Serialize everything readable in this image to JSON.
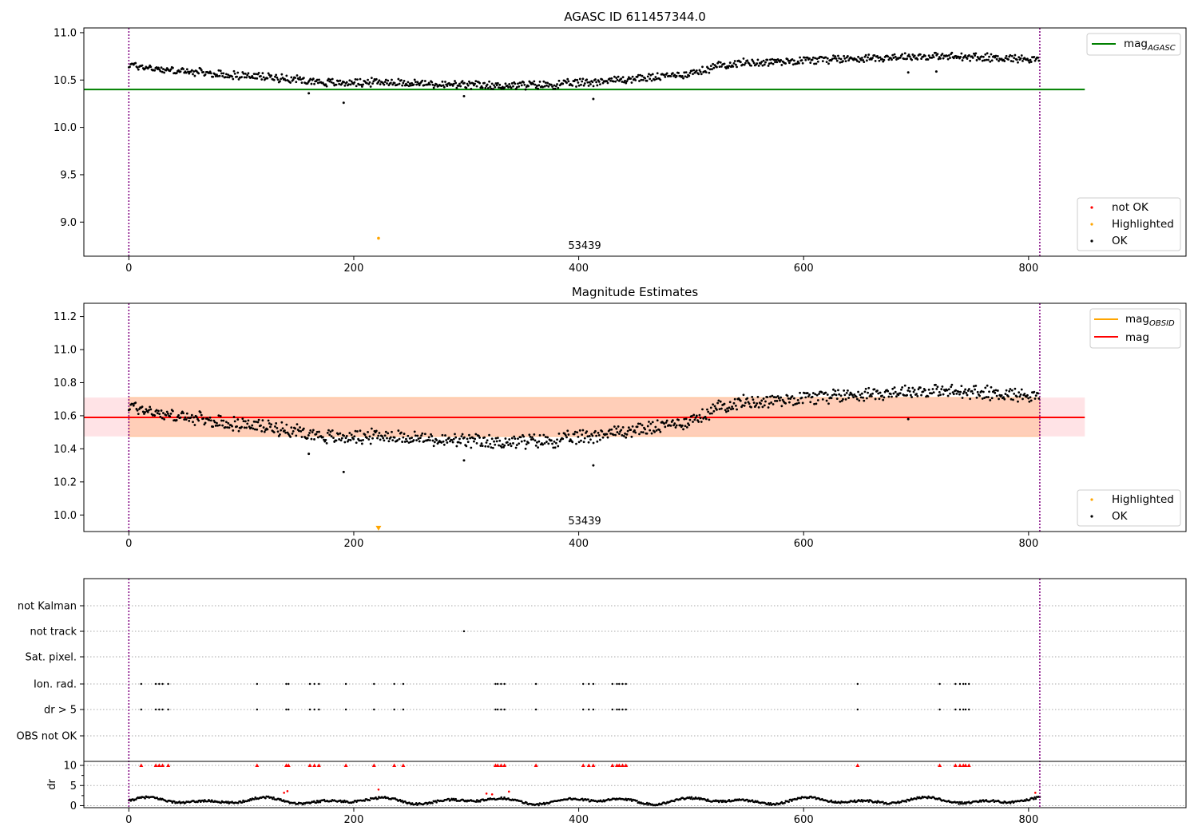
{
  "chart_data": [
    {
      "type": "scatter",
      "title": "AGASC ID 611457344.0",
      "xlim": [
        -40,
        940
      ],
      "ylim": [
        8.64,
        11.05
      ],
      "xticks": [
        0,
        200,
        400,
        600,
        800
      ],
      "yticks": [
        9.0,
        9.5,
        10.0,
        10.5,
        11.0
      ],
      "ytick_labels": [
        "9.0",
        "9.5",
        "10.0",
        "10.5",
        "11.0"
      ],
      "obs_boundaries": [
        0,
        810
      ],
      "obs_label": "53439",
      "mag_agasc": 10.4,
      "hline_x_range": [
        -40,
        850
      ],
      "legend_lines": [
        {
          "label": "mag",
          "subscript": "AGASC",
          "color": "#008000"
        }
      ],
      "legend_points": [
        {
          "label": "not OK",
          "color": "#ff0000"
        },
        {
          "label": "Highlighted",
          "color": "#ffa500"
        },
        {
          "label": "OK",
          "color": "#000000"
        }
      ],
      "trend": [
        [
          0,
          10.66
        ],
        [
          30,
          10.61
        ],
        [
          80,
          10.56
        ],
        [
          140,
          10.52
        ],
        [
          180,
          10.47
        ],
        [
          230,
          10.48
        ],
        [
          280,
          10.45
        ],
        [
          320,
          10.44
        ],
        [
          380,
          10.45
        ],
        [
          420,
          10.49
        ],
        [
          470,
          10.53
        ],
        [
          505,
          10.58
        ],
        [
          530,
          10.67
        ],
        [
          600,
          10.71
        ],
        [
          650,
          10.73
        ],
        [
          700,
          10.75
        ],
        [
          760,
          10.74
        ],
        [
          810,
          10.72
        ]
      ],
      "outliers_ok": [
        [
          160,
          10.36
        ],
        [
          191,
          10.26
        ],
        [
          298,
          10.33
        ],
        [
          413,
          10.3
        ],
        [
          693,
          10.58
        ],
        [
          718,
          10.59
        ]
      ],
      "highlighted": [
        [
          222,
          8.83
        ]
      ]
    },
    {
      "type": "scatter",
      "title": "Magnitude Estimates",
      "xlim": [
        -40,
        940
      ],
      "ylim": [
        9.9,
        11.28
      ],
      "xticks": [
        0,
        200,
        400,
        600,
        800
      ],
      "yticks": [
        10.0,
        10.2,
        10.4,
        10.6,
        10.8,
        11.0,
        11.2
      ],
      "ytick_labels": [
        "10.0",
        "10.2",
        "10.4",
        "10.6",
        "10.8",
        "11.0",
        "11.2"
      ],
      "obs_boundaries": [
        0,
        810
      ],
      "obs_label": "53439",
      "mag": 10.59,
      "mag_band": [
        10.475,
        10.71
      ],
      "mag_obsid_band": [
        10.475,
        10.71
      ],
      "band_x_range": [
        -40,
        850
      ],
      "legend_lines": [
        {
          "label": "mag",
          "subscript": "OBSID",
          "color": "#ffa500"
        },
        {
          "label": "mag",
          "subscript": "",
          "color": "#ff0000"
        }
      ],
      "legend_points": [
        {
          "label": "Highlighted",
          "color": "#ffa500"
        },
        {
          "label": "OK",
          "color": "#000000"
        }
      ],
      "trend": [
        [
          0,
          10.66
        ],
        [
          30,
          10.61
        ],
        [
          80,
          10.56
        ],
        [
          140,
          10.52
        ],
        [
          180,
          10.47
        ],
        [
          230,
          10.48
        ],
        [
          280,
          10.45
        ],
        [
          320,
          10.44
        ],
        [
          380,
          10.45
        ],
        [
          420,
          10.49
        ],
        [
          470,
          10.53
        ],
        [
          505,
          10.58
        ],
        [
          530,
          10.67
        ],
        [
          600,
          10.71
        ],
        [
          650,
          10.73
        ],
        [
          700,
          10.75
        ],
        [
          760,
          10.74
        ],
        [
          810,
          10.72
        ]
      ],
      "outliers_ok": [
        [
          160,
          10.37
        ],
        [
          191,
          10.26
        ],
        [
          298,
          10.33
        ],
        [
          413,
          10.3
        ],
        [
          693,
          10.58
        ]
      ],
      "highlighted": [
        [
          222,
          9.92
        ]
      ]
    },
    {
      "type": "scatter",
      "title": "",
      "xlim": [
        -40,
        940
      ],
      "xticks": [
        0,
        200,
        400,
        600,
        800
      ],
      "obs_boundaries": [
        0,
        810
      ],
      "flag_rows": [
        "not Kalman",
        "not track",
        "Sat. pixel.",
        "Ion. rad.",
        "dr > 5",
        "OBS not OK"
      ],
      "flag_times": {
        "not Kalman": [],
        "not track": [
          298
        ],
        "Sat. pixel.": [],
        "Ion. rad.": [
          11,
          24,
          27,
          30,
          35,
          114,
          140,
          142,
          161,
          165,
          169,
          193,
          218,
          236,
          244,
          326,
          328,
          331,
          334,
          362,
          404,
          409,
          413,
          430,
          434,
          436,
          439,
          442,
          648,
          721,
          735,
          739,
          742,
          744,
          747
        ],
        "dr > 5": [
          11,
          24,
          27,
          30,
          35,
          114,
          140,
          142,
          161,
          165,
          169,
          193,
          218,
          236,
          244,
          326,
          328,
          331,
          334,
          362,
          404,
          409,
          413,
          430,
          434,
          436,
          439,
          442,
          648,
          721,
          735,
          739,
          742,
          744,
          747
        ],
        "OBS not OK": []
      },
      "dr_ylabel": "dr",
      "dr_ylim": [
        -0.5,
        11
      ],
      "dr_yticks": [
        0,
        5,
        10
      ],
      "dr_ytick_labels": [
        "0",
        "5",
        "10"
      ],
      "dr_high_times": [
        11,
        24,
        27,
        30,
        35,
        114,
        140,
        142,
        161,
        165,
        169,
        193,
        218,
        236,
        244,
        326,
        328,
        331,
        334,
        362,
        404,
        409,
        413,
        430,
        434,
        436,
        439,
        442,
        648,
        721,
        735,
        739,
        742,
        744,
        747
      ],
      "dr_red_points": [
        [
          138,
          3.2
        ],
        [
          141,
          3.6
        ],
        [
          222,
          4.0
        ],
        [
          318,
          3.0
        ],
        [
          323,
          2.8
        ],
        [
          338,
          3.5
        ],
        [
          806,
          3.2
        ]
      ]
    }
  ]
}
